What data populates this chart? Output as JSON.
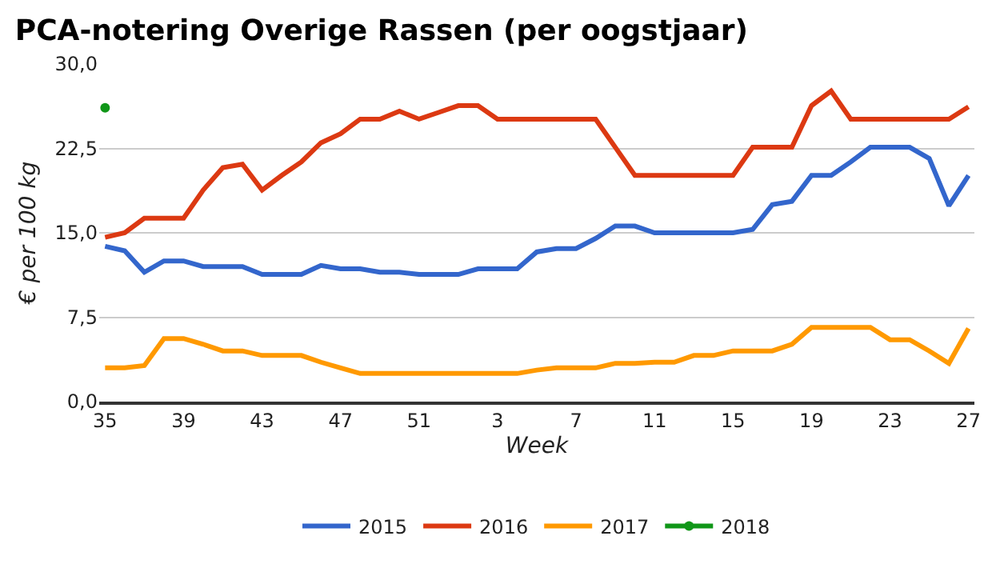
{
  "chart_data": {
    "type": "line",
    "title": "PCA-notering Overige Rassen (per oogstjaar)",
    "xlabel": "Week",
    "ylabel": "€ per 100 kg",
    "categories": [
      "35",
      null,
      null,
      null,
      "39",
      null,
      null,
      null,
      "43",
      null,
      null,
      null,
      "47",
      null,
      null,
      null,
      "51",
      null,
      null,
      null,
      "3",
      null,
      null,
      null,
      "7",
      null,
      null,
      null,
      "11",
      null,
      null,
      null,
      "15",
      null,
      null,
      null,
      "19",
      null,
      null,
      null,
      "23",
      null,
      null,
      null,
      "27"
    ],
    "series": [
      {
        "name": "2015",
        "color": "#3366cc",
        "values": [
          13.8,
          13.4,
          11.5,
          12.5,
          12.5,
          12.0,
          12.0,
          12.0,
          11.3,
          11.3,
          11.3,
          12.1,
          11.8,
          11.8,
          11.5,
          11.5,
          11.3,
          11.3,
          11.3,
          11.8,
          11.8,
          11.8,
          13.3,
          13.6,
          13.6,
          14.5,
          15.6,
          15.6,
          15.0,
          15.0,
          15.0,
          15.0,
          15.0,
          15.3,
          17.5,
          17.8,
          20.1,
          20.1,
          21.3,
          22.6,
          22.6,
          22.6,
          21.6,
          17.4,
          20.1
        ]
      },
      {
        "name": "2016",
        "color": "#dc3912",
        "values": [
          14.6,
          15.0,
          16.3,
          16.3,
          16.3,
          18.8,
          20.8,
          21.1,
          18.8,
          20.1,
          21.3,
          23.0,
          23.8,
          25.1,
          25.1,
          25.8,
          25.1,
          25.7,
          26.3,
          26.3,
          25.1,
          25.1,
          25.1,
          25.1,
          25.1,
          25.1,
          22.6,
          20.1,
          20.1,
          20.1,
          20.1,
          20.1,
          20.1,
          22.6,
          22.6,
          22.6,
          26.3,
          27.6,
          25.1,
          25.1,
          25.1,
          25.1,
          25.1,
          25.1,
          26.2
        ]
      },
      {
        "name": "2017",
        "color": "#ff9900",
        "values": [
          3.0,
          3.0,
          3.2,
          5.6,
          5.6,
          5.1,
          4.5,
          4.5,
          4.1,
          4.1,
          4.1,
          3.5,
          3.0,
          2.5,
          2.5,
          2.5,
          2.5,
          2.5,
          2.5,
          2.5,
          2.5,
          2.5,
          2.8,
          3.0,
          3.0,
          3.0,
          3.4,
          3.4,
          3.5,
          3.5,
          4.1,
          4.1,
          4.5,
          4.5,
          4.5,
          5.1,
          6.6,
          6.6,
          6.6,
          6.6,
          5.5,
          5.5,
          4.5,
          3.4,
          6.5
        ]
      },
      {
        "name": "2018",
        "color": "#109618",
        "marker": "circle",
        "values": [
          26.1,
          null,
          null,
          null,
          null,
          null,
          null,
          null,
          null,
          null,
          null,
          null,
          null,
          null,
          null,
          null,
          null,
          null,
          null,
          null,
          null,
          null,
          null,
          null,
          null,
          null,
          null,
          null,
          null,
          null,
          null,
          null,
          null,
          null,
          null,
          null,
          null,
          null,
          null,
          null,
          null,
          null,
          null,
          null,
          null
        ]
      }
    ],
    "ylim": [
      0,
      30
    ],
    "yticks": [
      {
        "value": 0,
        "label": "0,0"
      },
      {
        "value": 7.5,
        "label": "7,5"
      },
      {
        "value": 15,
        "label": "15,0"
      },
      {
        "value": 22.5,
        "label": "22,5"
      },
      {
        "value": 30,
        "label": "30,0"
      }
    ],
    "grid": "y",
    "legend": "bottom"
  }
}
